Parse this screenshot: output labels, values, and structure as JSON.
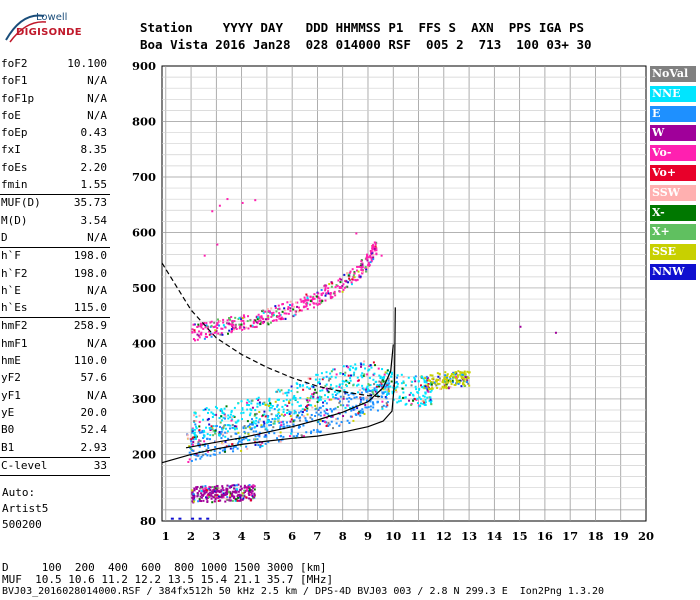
{
  "logo": {
    "line1": "Lowell",
    "line2": "DIGISONDE"
  },
  "header": {
    "line1": "Station    YYYY DAY   DDD HHMMSS P1  FFS S  AXN  PPS IGA PS",
    "line2": "Boa Vista 2016 Jan28  028 014000 RSF  005 2  713  100 03+ 30"
  },
  "params": [
    {
      "key": "foF2",
      "value": "10.100"
    },
    {
      "key": "foF1",
      "value": "N/A"
    },
    {
      "key": "foF1p",
      "value": "N/A"
    },
    {
      "key": "foE",
      "value": "N/A"
    },
    {
      "key": "foEp",
      "value": "0.43"
    },
    {
      "key": "fxI",
      "value": "8.35"
    },
    {
      "key": "foEs",
      "value": "2.20"
    },
    {
      "key": "fmin",
      "value": "1.55"
    },
    {
      "key": "MUF(D)",
      "value": "35.73",
      "sep": true
    },
    {
      "key": "M(D)",
      "value": "3.54"
    },
    {
      "key": "D",
      "value": "N/A"
    },
    {
      "key": "h`F",
      "value": "198.0",
      "sep": true
    },
    {
      "key": "h`F2",
      "value": "198.0"
    },
    {
      "key": "h`E",
      "value": "N/A"
    },
    {
      "key": "h`Es",
      "value": "115.0"
    },
    {
      "key": "hmF2",
      "value": "258.9",
      "sep": true
    },
    {
      "key": "hmF1",
      "value": "N/A"
    },
    {
      "key": "hmE",
      "value": "110.0"
    },
    {
      "key": "yF2",
      "value": "57.6"
    },
    {
      "key": "yF1",
      "value": "N/A"
    },
    {
      "key": "yE",
      "value": "20.0"
    },
    {
      "key": "B0",
      "value": "52.4"
    },
    {
      "key": "B1",
      "value": "2.93"
    },
    {
      "key": "C-level",
      "value": "33",
      "sep": true
    }
  ],
  "autoscale": {
    "line1": "Auto:",
    "line2": "Artist5",
    "line3": "500200"
  },
  "footer": {
    "line1": "D     100  200  400  600  800 1000 1500 3000 [km]",
    "line2": "MUF  10.5 10.6 11.2 12.2 13.5 15.4 21.1 35.7 [MHz]",
    "line3": "BVJ03_2016028014000.RSF / 384fx512h 50 kHz 2.5 km / DPS-4D BVJ03 003 / 2.8 N 299.3 E  Ion2Png 1.3.20"
  },
  "legend": [
    {
      "label": "NoVal",
      "color": "#808080"
    },
    {
      "label": "NNE",
      "color": "#00e5ff"
    },
    {
      "label": "E",
      "color": "#1e90ff"
    },
    {
      "label": "W",
      "color": "#a0009a"
    },
    {
      "label": "Vo-",
      "color": "#ff20b0"
    },
    {
      "label": "Vo+",
      "color": "#e8002a"
    },
    {
      "label": "SSW",
      "color": "#ffb0b0"
    },
    {
      "label": "X-",
      "color": "#007800"
    },
    {
      "label": "X+",
      "color": "#60c060"
    },
    {
      "label": "SSE",
      "color": "#c8d000"
    },
    {
      "label": "NNW",
      "color": "#1010d0"
    }
  ],
  "chart_data": {
    "type": "scatter",
    "title": "",
    "xlabel": "",
    "ylabel": "",
    "xlim": [
      0.85,
      20
    ],
    "ylim": [
      80,
      900
    ],
    "xticks": [
      1,
      2,
      3,
      4,
      5,
      6,
      7,
      8,
      9,
      10,
      11,
      12,
      13,
      14,
      15,
      16,
      17,
      18,
      19,
      20
    ],
    "yticks": [
      80,
      200,
      300,
      400,
      500,
      600,
      700,
      800,
      900
    ],
    "grid": true,
    "legend_position": "right",
    "series": [
      {
        "color": "#1e90ff",
        "traces": [
          [
            1.8,
            215
          ],
          [
            2.5,
            222
          ],
          [
            3.5,
            230
          ],
          [
            4.5,
            240
          ],
          [
            5.5,
            250
          ],
          [
            6.5,
            262
          ],
          [
            7.5,
            275
          ],
          [
            8.5,
            290
          ],
          [
            9.3,
            305
          ],
          [
            9.8,
            318
          ]
        ]
      },
      {
        "color": "#00e5ff",
        "traces": [
          [
            2.0,
            255
          ],
          [
            3.0,
            262
          ],
          [
            4.0,
            272
          ],
          [
            5.0,
            285
          ],
          [
            6.0,
            300
          ],
          [
            7.0,
            320
          ],
          [
            8.0,
            335
          ],
          [
            9.0,
            345
          ],
          [
            10.0,
            320
          ],
          [
            11.0,
            315
          ],
          [
            11.5,
            320
          ]
        ]
      },
      {
        "color": "#ff20b0",
        "traces": [
          [
            2.0,
            420
          ],
          [
            3.0,
            430
          ],
          [
            4.0,
            440
          ],
          [
            5.0,
            450
          ],
          [
            6.0,
            465
          ],
          [
            7.0,
            485
          ],
          [
            8.0,
            510
          ],
          [
            8.8,
            540
          ],
          [
            9.3,
            575
          ]
        ]
      },
      {
        "color": "#a0009a",
        "traces": [
          [
            2.0,
            130
          ],
          [
            2.5,
            130
          ],
          [
            3.0,
            131
          ],
          [
            3.5,
            132
          ],
          [
            4.0,
            133
          ],
          [
            4.5,
            134
          ]
        ]
      },
      {
        "color": "#c8d000",
        "traces": [
          [
            11.2,
            330
          ],
          [
            12.0,
            335
          ],
          [
            12.5,
            338
          ],
          [
            13.0,
            340
          ]
        ]
      },
      {
        "color": "#a0009a",
        "traces": [
          [
            14.8,
            437
          ],
          [
            15.4,
            421
          ],
          [
            16.6,
            421
          ]
        ]
      }
    ],
    "profile_solid": [
      [
        0.85,
        185
      ],
      [
        2,
        200
      ],
      [
        3,
        210
      ],
      [
        4,
        218
      ],
      [
        5,
        224
      ],
      [
        6,
        229
      ],
      [
        7,
        233
      ],
      [
        8,
        240
      ],
      [
        9,
        250
      ],
      [
        9.6,
        260
      ],
      [
        9.95,
        278
      ],
      [
        10.05,
        330
      ],
      [
        10.08,
        465
      ]
    ],
    "trace_solid": [
      [
        1.8,
        212
      ],
      [
        3,
        222
      ],
      [
        4,
        230
      ],
      [
        5,
        240
      ],
      [
        6,
        250
      ],
      [
        7,
        262
      ],
      [
        8,
        276
      ],
      [
        9,
        295
      ],
      [
        9.6,
        320
      ],
      [
        9.9,
        350
      ],
      [
        10.0,
        398
      ]
    ],
    "trace_dashed": [
      [
        0.85,
        545
      ],
      [
        2,
        460
      ],
      [
        3,
        410
      ],
      [
        4,
        380
      ],
      [
        5,
        357
      ],
      [
        6,
        338
      ],
      [
        7,
        323
      ],
      [
        8,
        313
      ],
      [
        9,
        306
      ],
      [
        9.6,
        304
      ]
    ]
  }
}
